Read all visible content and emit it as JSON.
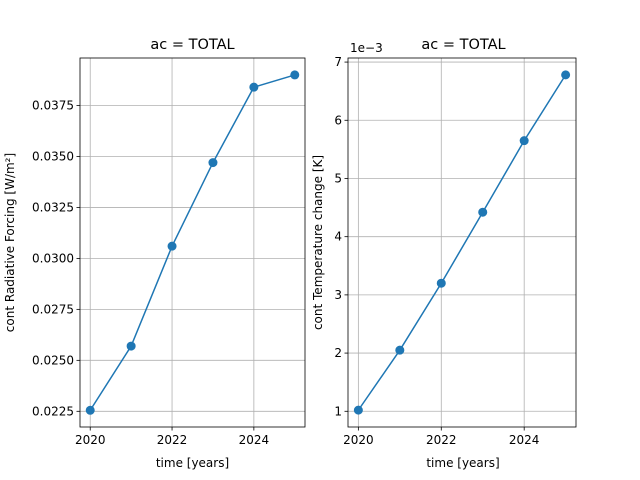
{
  "chart_data": [
    {
      "type": "line",
      "title": "ac = TOTAL",
      "xlabel": "time [years]",
      "ylabel": "cont Radiative Forcing [W/m²]",
      "x": [
        2020,
        2021,
        2022,
        2023,
        2024,
        2025
      ],
      "series": [
        {
          "values": [
            0.02255,
            0.0257,
            0.0306,
            0.0347,
            0.0384,
            0.039
          ],
          "color": "#1f77b4"
        }
      ],
      "xlim": [
        2019.75,
        2025.25
      ],
      "ylim": [
        0.02173,
        0.03983
      ],
      "xticks": [
        2020,
        2022,
        2024
      ],
      "xtick_labels": [
        "2020",
        "2022",
        "2024"
      ],
      "yticks": [
        0.0225,
        0.025,
        0.0275,
        0.03,
        0.0325,
        0.035,
        0.0375
      ],
      "ytick_labels": [
        "0.0225",
        "0.0250",
        "0.0275",
        "0.0300",
        "0.0325",
        "0.0350",
        "0.0375"
      ],
      "grid": true
    },
    {
      "type": "line",
      "title": "ac = TOTAL",
      "xlabel": "time [years]",
      "ylabel": "cont Temperature change [K]",
      "offset_text": "1e−3",
      "x": [
        2020,
        2021,
        2022,
        2023,
        2024,
        2025
      ],
      "series": [
        {
          "values": [
            1.02,
            2.05,
            3.2,
            4.42,
            5.65,
            6.78
          ],
          "color": "#1f77b4"
        }
      ],
      "xlim": [
        2019.75,
        2025.25
      ],
      "ylim": [
        0.73,
        7.07
      ],
      "xticks": [
        2020,
        2022,
        2024
      ],
      "xtick_labels": [
        "2020",
        "2022",
        "2024"
      ],
      "yticks": [
        1,
        2,
        3,
        4,
        5,
        6,
        7
      ],
      "ytick_labels": [
        "1",
        "2",
        "3",
        "4",
        "5",
        "6",
        "7"
      ],
      "grid": true
    }
  ]
}
